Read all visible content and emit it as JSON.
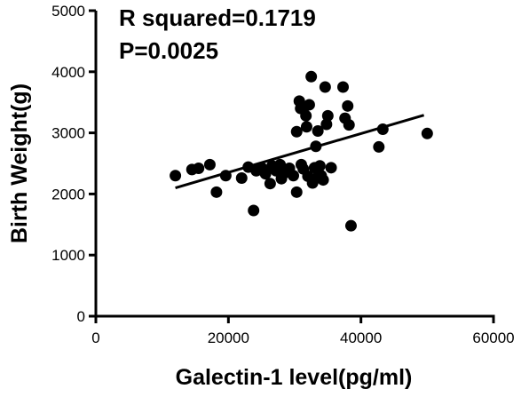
{
  "chart_data": {
    "type": "scatter",
    "xlabel": "Galectin-1 level(pg/ml)",
    "ylabel": "Birth Weight(g)",
    "xlim": [
      0,
      60000
    ],
    "ylim": [
      0,
      5000
    ],
    "x_ticks": [
      0,
      20000,
      40000,
      60000
    ],
    "y_ticks": [
      0,
      1000,
      2000,
      3000,
      4000,
      5000
    ],
    "x_tick_labels": [
      "0",
      "20000",
      "40000",
      "60000"
    ],
    "y_tick_labels": [
      "0",
      "1000",
      "2000",
      "3000",
      "4000",
      "5000"
    ],
    "grid": false,
    "legend": "none",
    "annotations": [
      "R squared=0.1719",
      "P=0.0025"
    ],
    "series": [
      {
        "points": [
          [
            12000,
            2300
          ],
          [
            14500,
            2400
          ],
          [
            15500,
            2420
          ],
          [
            17200,
            2480
          ],
          [
            18200,
            2030
          ],
          [
            19600,
            2300
          ],
          [
            22000,
            2260
          ],
          [
            23000,
            2440
          ],
          [
            23800,
            1730
          ],
          [
            24200,
            2380
          ],
          [
            25000,
            2430
          ],
          [
            25600,
            2330
          ],
          [
            26300,
            2170
          ],
          [
            26600,
            2460
          ],
          [
            27200,
            2380
          ],
          [
            27800,
            2480
          ],
          [
            28000,
            2250
          ],
          [
            28600,
            2350
          ],
          [
            29200,
            2420
          ],
          [
            29800,
            2300
          ],
          [
            30300,
            3020
          ],
          [
            30300,
            2030
          ],
          [
            30700,
            3520
          ],
          [
            30900,
            3400
          ],
          [
            31000,
            2480
          ],
          [
            31300,
            2410
          ],
          [
            31500,
            3430
          ],
          [
            31700,
            3280
          ],
          [
            31800,
            3100
          ],
          [
            32000,
            2290
          ],
          [
            32200,
            3460
          ],
          [
            32500,
            3920
          ],
          [
            32700,
            2180
          ],
          [
            33000,
            2430
          ],
          [
            33200,
            2780
          ],
          [
            33300,
            2260
          ],
          [
            33500,
            3030
          ],
          [
            33800,
            2460
          ],
          [
            34000,
            2300
          ],
          [
            34300,
            2230
          ],
          [
            34600,
            3750
          ],
          [
            34800,
            3140
          ],
          [
            35000,
            3280
          ],
          [
            35500,
            2430
          ],
          [
            37300,
            3750
          ],
          [
            37600,
            3240
          ],
          [
            38000,
            3440
          ],
          [
            38200,
            3130
          ],
          [
            38500,
            1480
          ],
          [
            42700,
            2770
          ],
          [
            43300,
            3060
          ],
          [
            50000,
            2990
          ]
        ]
      }
    ],
    "regression_line": {
      "x": [
        12000,
        49500
      ],
      "y": [
        2100,
        3290
      ]
    },
    "colors": {
      "marker": "#000000",
      "line": "#000000",
      "axis": "#000000"
    }
  }
}
